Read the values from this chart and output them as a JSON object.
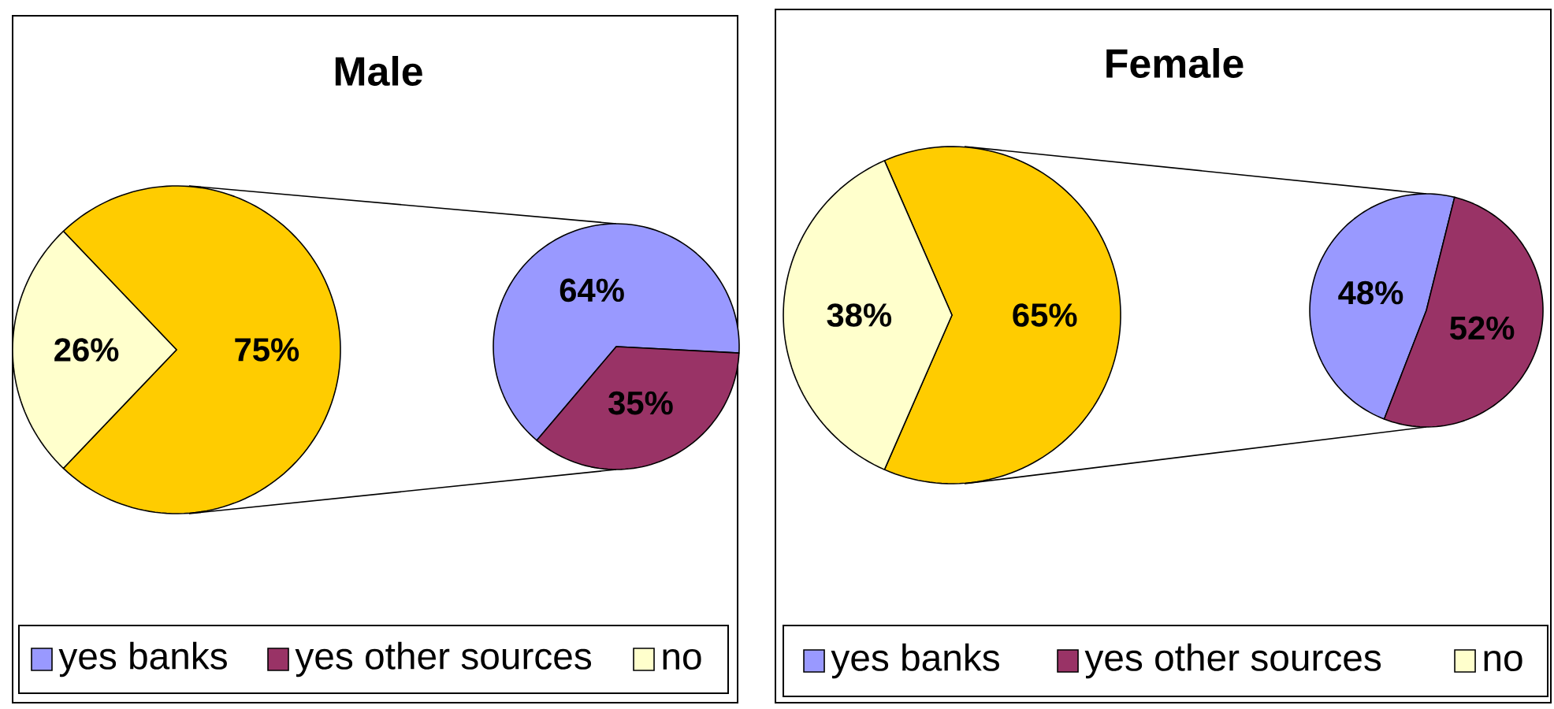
{
  "chart_data": [
    {
      "type": "pie",
      "title": "Male",
      "categories": [
        null,
        "no"
      ],
      "values": [
        75,
        26
      ],
      "colors": [
        "#ffcc00",
        "#ffffcc"
      ],
      "value_labels": [
        "75%",
        "26%"
      ],
      "legend": "bottom"
    },
    {
      "type": "pie",
      "categories": [
        "yes banks",
        "yes other sources"
      ],
      "values": [
        64,
        35
      ],
      "colors": [
        "#9999ff",
        "#993366"
      ],
      "value_labels": [
        "64%",
        "35%"
      ],
      "legend": "bottom"
    },
    {
      "type": "pie",
      "title": "Female",
      "categories": [
        null,
        "no"
      ],
      "values": [
        65,
        38
      ],
      "colors": [
        "#ffcc00",
        "#ffffcc"
      ],
      "value_labels": [
        "65%",
        "38%"
      ],
      "legend": "bottom"
    },
    {
      "type": "pie",
      "categories": [
        "yes banks",
        "yes other sources"
      ],
      "values": [
        48,
        52
      ],
      "colors": [
        "#9999ff",
        "#993366"
      ],
      "value_labels": [
        "48%",
        "52%"
      ],
      "legend": "bottom"
    }
  ]
}
